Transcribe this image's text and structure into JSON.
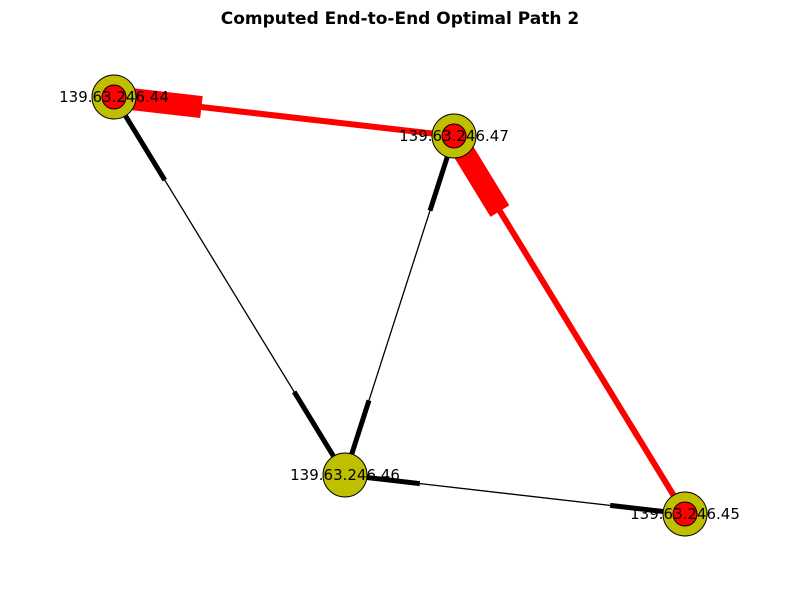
{
  "title": "Computed End-to-End Optimal Path 2",
  "colors": {
    "node_fill": "#bfbf00",
    "path_node_fill": "#ff0000",
    "path_edge": "#ff0000",
    "edge": "#000000",
    "background": "#ffffff"
  },
  "nodes": [
    {
      "id": "n44",
      "label": "139.63.246.44",
      "on_path": true
    },
    {
      "id": "n47",
      "label": "139.63.246.47",
      "on_path": true
    },
    {
      "id": "n46",
      "label": "139.63.246.46",
      "on_path": false
    },
    {
      "id": "n45",
      "label": "139.63.246.45",
      "on_path": true
    }
  ],
  "edges": [
    {
      "source": "n44",
      "target": "n47",
      "on_path": true
    },
    {
      "source": "n47",
      "target": "n45",
      "on_path": true
    },
    {
      "source": "n44",
      "target": "n46",
      "on_path": false
    },
    {
      "source": "n47",
      "target": "n46",
      "on_path": false
    },
    {
      "source": "n46",
      "target": "n45",
      "on_path": false
    }
  ]
}
